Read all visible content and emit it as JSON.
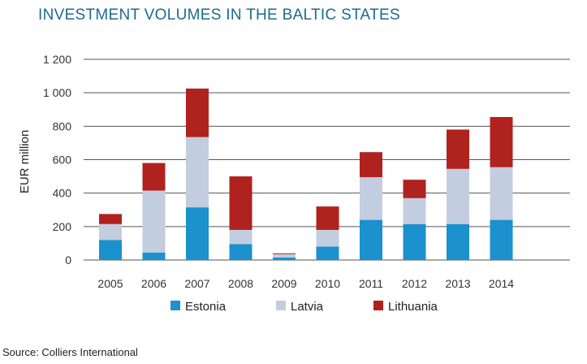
{
  "header": {
    "title": "INVESTMENT VOLUMES IN THE BALTIC STATES"
  },
  "footer": {
    "source": "Source: Colliers International"
  },
  "chart_data": {
    "type": "bar",
    "stacked": true,
    "title": "INVESTMENT VOLUMES IN THE BALTIC STATES",
    "xlabel": "",
    "ylabel": "EUR million",
    "ylim": [
      0,
      1200
    ],
    "yticks": [
      0,
      200,
      400,
      600,
      800,
      1000,
      1200
    ],
    "ytick_labels": [
      "0",
      "200",
      "400",
      "600",
      "800",
      "1 000",
      "1 200"
    ],
    "grid": true,
    "legend_position": "bottom",
    "categories": [
      "2005",
      "2006",
      "2007",
      "2008",
      "2009",
      "2010",
      "2011",
      "2012",
      "2013",
      "2014"
    ],
    "series": [
      {
        "name": "Estonia",
        "color": "#1b91cd",
        "values": [
          120,
          45,
          315,
          95,
          15,
          80,
          240,
          215,
          215,
          240
        ]
      },
      {
        "name": "Latvia",
        "color": "#c3cde0",
        "values": [
          95,
          370,
          420,
          85,
          20,
          100,
          255,
          155,
          330,
          315
        ]
      },
      {
        "name": "Lithuania",
        "color": "#b0221e",
        "values": [
          60,
          165,
          290,
          320,
          5,
          140,
          150,
          110,
          235,
          300
        ]
      }
    ]
  }
}
